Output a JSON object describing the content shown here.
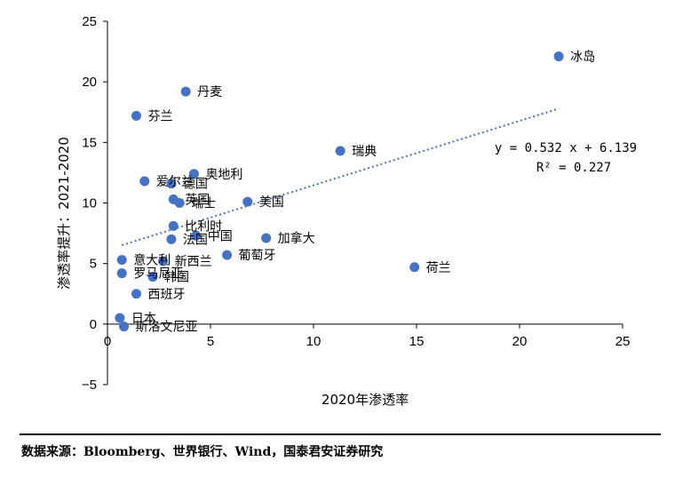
{
  "chart_data": {
    "type": "scatter",
    "xlabel": "2020年渗透率",
    "ylabel": "渗透率提升：2021-2020",
    "xlim": [
      0,
      25
    ],
    "ylim": [
      -5,
      25
    ],
    "xticks": [
      "0",
      "5",
      "10",
      "15",
      "20",
      "25"
    ],
    "yticks": [
      "25",
      "20",
      "15",
      "10",
      "5",
      "0",
      "−5"
    ],
    "grid": false,
    "marker_color": "#4472C4",
    "trendline": {
      "slope": 0.532,
      "intercept": 6.139,
      "x_range": [
        0.7,
        21.9
      ],
      "style": "dotted",
      "color": "#4472C4"
    },
    "equation": "y = 0.532 x + 6.139",
    "r_squared": "R² = 0.227",
    "points": [
      {
        "label": "冰岛",
        "x": 21.9,
        "y": 22.1
      },
      {
        "label": "丹麦",
        "x": 3.8,
        "y": 19.2
      },
      {
        "label": "芬兰",
        "x": 1.4,
        "y": 17.2
      },
      {
        "label": "瑞典",
        "x": 11.3,
        "y": 14.3
      },
      {
        "label": "奥地利",
        "x": 4.2,
        "y": 12.4
      },
      {
        "label": "爱尔兰",
        "x": 1.8,
        "y": 11.8
      },
      {
        "label": "德国",
        "x": 3.1,
        "y": 11.6
      },
      {
        "label": "英国",
        "x": 3.2,
        "y": 10.3
      },
      {
        "label": "瑞士",
        "x": 3.5,
        "y": 10.0
      },
      {
        "label": "美国",
        "x": 6.8,
        "y": 10.1
      },
      {
        "label": "比利时",
        "x": 3.2,
        "y": 8.1
      },
      {
        "label": "中国",
        "x": 4.3,
        "y": 7.3
      },
      {
        "label": "法国",
        "x": 3.1,
        "y": 7.0
      },
      {
        "label": "加拿大",
        "x": 7.7,
        "y": 7.1
      },
      {
        "label": "葡萄牙",
        "x": 5.8,
        "y": 5.7
      },
      {
        "label": "意大利",
        "x": 0.7,
        "y": 5.3
      },
      {
        "label": "新西兰",
        "x": 2.7,
        "y": 5.2
      },
      {
        "label": "荷兰",
        "x": 14.9,
        "y": 4.7
      },
      {
        "label": "罗马尼亚",
        "x": 0.7,
        "y": 4.2
      },
      {
        "label": "韩国",
        "x": 2.2,
        "y": 3.9
      },
      {
        "label": "西班牙",
        "x": 1.4,
        "y": 2.5
      },
      {
        "label": "日本",
        "x": 0.6,
        "y": 0.5
      },
      {
        "label": "斯洛文尼亚",
        "x": 0.8,
        "y": -0.2
      }
    ]
  },
  "source_note": "数据来源：Bloomberg、世界银行、Wind，国泰君安证券研究"
}
